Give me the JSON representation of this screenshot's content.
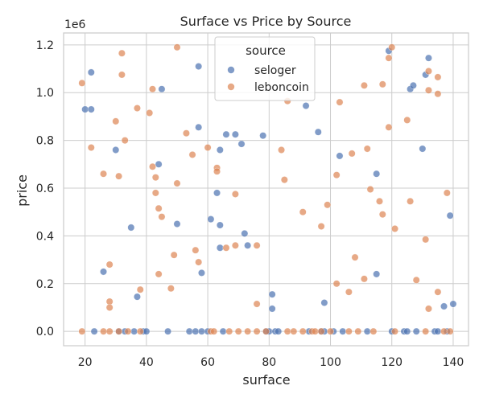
{
  "chart_data": {
    "type": "scatter",
    "title": "Surface vs Price by Source",
    "xlabel": "surface",
    "ylabel": "price",
    "y_offset_label": "1e6",
    "xlim": [
      13,
      145
    ],
    "ylim": [
      -0.06,
      1.25
    ],
    "x_ticks": [
      20,
      40,
      60,
      80,
      100,
      120,
      140
    ],
    "y_ticks": [
      0.0,
      0.2,
      0.4,
      0.6,
      0.8,
      1.0,
      1.2
    ],
    "x_tick_labels": [
      "20",
      "40",
      "60",
      "80",
      "100",
      "120",
      "140"
    ],
    "y_tick_labels": [
      "0.0",
      "0.2",
      "0.4",
      "0.6",
      "0.8",
      "1.0",
      "1.2"
    ],
    "grid": true,
    "legend": {
      "title": "source",
      "position": "upper center"
    },
    "series": [
      {
        "name": "seloger",
        "color": "#4c72b0",
        "points": [
          [
            20,
            0.93
          ],
          [
            22,
            1.085
          ],
          [
            22,
            0.93
          ],
          [
            23,
            0.0
          ],
          [
            26,
            0.25
          ],
          [
            30,
            0.76
          ],
          [
            31,
            0.0
          ],
          [
            33,
            0.0
          ],
          [
            35,
            0.435
          ],
          [
            36,
            0.0
          ],
          [
            37,
            0.145
          ],
          [
            39,
            0.0
          ],
          [
            40,
            0.0
          ],
          [
            44,
            0.7
          ],
          [
            45,
            1.015
          ],
          [
            47,
            0.0
          ],
          [
            50,
            0.45
          ],
          [
            54,
            0.0
          ],
          [
            56,
            0.0
          ],
          [
            57,
            1.11
          ],
          [
            57,
            0.855
          ],
          [
            58,
            0.245
          ],
          [
            58,
            0.0
          ],
          [
            60,
            0.0
          ],
          [
            61,
            0.47
          ],
          [
            63,
            0.58
          ],
          [
            64,
            0.76
          ],
          [
            64,
            0.445
          ],
          [
            64,
            0.35
          ],
          [
            65,
            0.0
          ],
          [
            66,
            0.825
          ],
          [
            69,
            0.825
          ],
          [
            71,
            0.785
          ],
          [
            72,
            0.41
          ],
          [
            73,
            0.36
          ],
          [
            78,
            0.82
          ],
          [
            79,
            0.0
          ],
          [
            80,
            0.0
          ],
          [
            81,
            0.155
          ],
          [
            81,
            0.095
          ],
          [
            82,
            0.0
          ],
          [
            83,
            0.0
          ],
          [
            92,
            0.945
          ],
          [
            93,
            0.0
          ],
          [
            96,
            0.835
          ],
          [
            97,
            0.0
          ],
          [
            98,
            0.12
          ],
          [
            98,
            0.0
          ],
          [
            101,
            0.0
          ],
          [
            103,
            0.735
          ],
          [
            104,
            0.0
          ],
          [
            112,
            0.0
          ],
          [
            115,
            0.66
          ],
          [
            115,
            0.24
          ],
          [
            119,
            1.175
          ],
          [
            120,
            0.0
          ],
          [
            124,
            0.0
          ],
          [
            125,
            0.0
          ],
          [
            126,
            1.015
          ],
          [
            127,
            1.03
          ],
          [
            128,
            0.0
          ],
          [
            130,
            0.765
          ],
          [
            131,
            1.075
          ],
          [
            132,
            1.145
          ],
          [
            134,
            0.0
          ],
          [
            135,
            0.0
          ],
          [
            137,
            0.105
          ],
          [
            138,
            0.0
          ],
          [
            139,
            0.485
          ],
          [
            140,
            0.115
          ]
        ]
      },
      {
        "name": "leboncoin",
        "color": "#dd8452",
        "points": [
          [
            19,
            1.04
          ],
          [
            19,
            0.0
          ],
          [
            22,
            0.77
          ],
          [
            26,
            0.66
          ],
          [
            26,
            0.0
          ],
          [
            28,
            0.28
          ],
          [
            28,
            0.125
          ],
          [
            28,
            0.1
          ],
          [
            28,
            0.0
          ],
          [
            30,
            0.88
          ],
          [
            31,
            0.65
          ],
          [
            31,
            0.0
          ],
          [
            32,
            1.165
          ],
          [
            32,
            1.075
          ],
          [
            33,
            0.8
          ],
          [
            34,
            0.0
          ],
          [
            37,
            0.935
          ],
          [
            38,
            0.175
          ],
          [
            38,
            0.0
          ],
          [
            41,
            0.915
          ],
          [
            42,
            1.015
          ],
          [
            42,
            0.69
          ],
          [
            43,
            0.645
          ],
          [
            43,
            0.58
          ],
          [
            44,
            0.515
          ],
          [
            44,
            0.24
          ],
          [
            45,
            0.48
          ],
          [
            48,
            0.18
          ],
          [
            49,
            0.32
          ],
          [
            50,
            1.19
          ],
          [
            50,
            0.62
          ],
          [
            53,
            0.83
          ],
          [
            55,
            0.74
          ],
          [
            56,
            0.34
          ],
          [
            57,
            0.29
          ],
          [
            60,
            0.77
          ],
          [
            61,
            0.0
          ],
          [
            62,
            0.0
          ],
          [
            63,
            0.685
          ],
          [
            63,
            0.67
          ],
          [
            66,
            0.35
          ],
          [
            67,
            0.0
          ],
          [
            69,
            0.575
          ],
          [
            69,
            0.36
          ],
          [
            70,
            0.0
          ],
          [
            73,
            0.0
          ],
          [
            76,
            0.36
          ],
          [
            76,
            0.115
          ],
          [
            76,
            0.0
          ],
          [
            79,
            0.0
          ],
          [
            84,
            0.76
          ],
          [
            85,
            0.635
          ],
          [
            86,
            0.965
          ],
          [
            86,
            0.0
          ],
          [
            88,
            0.0
          ],
          [
            91,
            0.5
          ],
          [
            91,
            0.0
          ],
          [
            94,
            0.0
          ],
          [
            95,
            0.0
          ],
          [
            97,
            0.44
          ],
          [
            97,
            0.0
          ],
          [
            99,
            0.53
          ],
          [
            100,
            0.0
          ],
          [
            102,
            0.655
          ],
          [
            102,
            0.2
          ],
          [
            103,
            0.96
          ],
          [
            106,
            0.165
          ],
          [
            106,
            0.0
          ],
          [
            107,
            0.745
          ],
          [
            108,
            0.31
          ],
          [
            109,
            0.0
          ],
          [
            111,
            1.03
          ],
          [
            111,
            0.22
          ],
          [
            112,
            0.765
          ],
          [
            113,
            0.595
          ],
          [
            114,
            0.0
          ],
          [
            116,
            0.545
          ],
          [
            117,
            1.035
          ],
          [
            117,
            0.49
          ],
          [
            119,
            1.145
          ],
          [
            119,
            0.855
          ],
          [
            120,
            1.19
          ],
          [
            121,
            0.43
          ],
          [
            121,
            0.0
          ],
          [
            125,
            0.885
          ],
          [
            126,
            0.545
          ],
          [
            128,
            0.215
          ],
          [
            131,
            0.385
          ],
          [
            131,
            0.0
          ],
          [
            132,
            1.09
          ],
          [
            132,
            1.01
          ],
          [
            132,
            0.095
          ],
          [
            135,
            1.065
          ],
          [
            135,
            0.995
          ],
          [
            135,
            0.165
          ],
          [
            137,
            0.0
          ],
          [
            138,
            0.58
          ],
          [
            139,
            0.0
          ]
        ]
      }
    ]
  }
}
